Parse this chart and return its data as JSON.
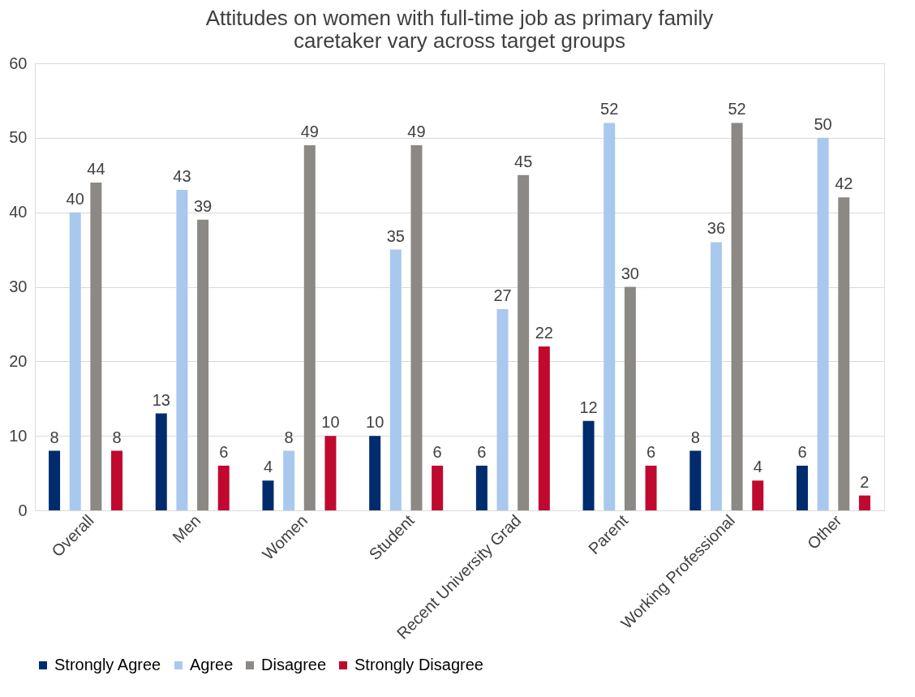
{
  "chart_data": {
    "type": "bar",
    "title": "Attitudes on women with full-time job as primary family caretaker vary across target groups",
    "categories": [
      "Overall",
      "Men",
      "Women",
      "Student",
      "Recent University Grad",
      "Parent",
      "Working Professional",
      "Other"
    ],
    "series": [
      {
        "name": "Strongly Agree",
        "color": "#002c6e",
        "values": [
          8,
          13,
          4,
          10,
          6,
          12,
          8,
          6
        ]
      },
      {
        "name": "Agree",
        "color": "#a9c8ee",
        "values": [
          40,
          43,
          8,
          35,
          27,
          52,
          36,
          50
        ]
      },
      {
        "name": "Disagree",
        "color": "#8c8984",
        "values": [
          44,
          39,
          49,
          49,
          45,
          30,
          52,
          42
        ]
      },
      {
        "name": "Strongly Disagree",
        "color": "#c0092f",
        "values": [
          8,
          6,
          10,
          6,
          22,
          6,
          4,
          2
        ]
      }
    ],
    "ylim": [
      0,
      60
    ],
    "yticks": [
      0,
      10,
      20,
      30,
      40,
      50,
      60
    ],
    "grid": "y",
    "legend": "bottom",
    "data_labels": true
  }
}
